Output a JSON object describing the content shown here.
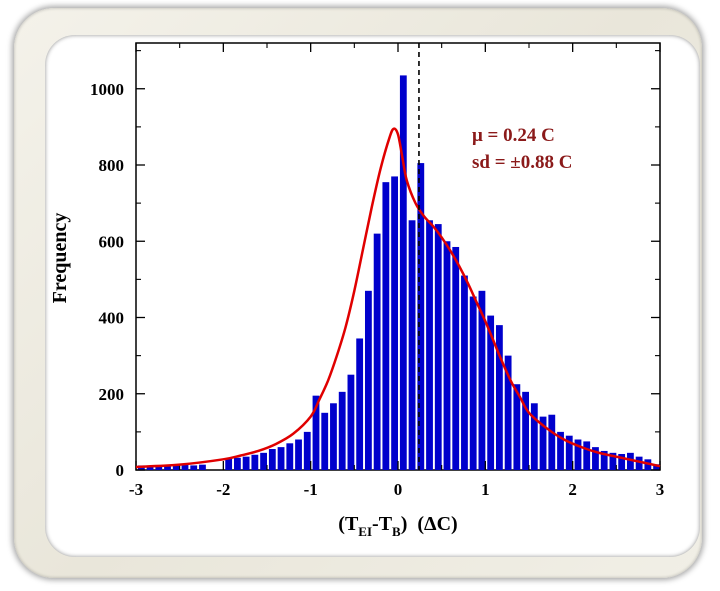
{
  "chart_data": {
    "type": "bar",
    "title": "",
    "xlabel_parts": {
      "open": "(T",
      "sub1": "EI",
      "mid": "-T",
      "sub2": "B",
      "close": ")",
      "unit": "(ΔC)"
    },
    "ylabel": "Frequency",
    "xlim": [
      -3,
      3
    ],
    "ylim": [
      0,
      1000
    ],
    "x_ticks": [
      -3,
      -2,
      -1,
      0,
      1,
      2,
      3
    ],
    "x_tick_labels": [
      "-3",
      "-2",
      "-1",
      "0",
      "1",
      "2",
      "3"
    ],
    "y_ticks": [
      0,
      200,
      400,
      600,
      800,
      1000
    ],
    "y_tick_labels": [
      "0",
      "200",
      "400",
      "600",
      "800",
      "1000"
    ],
    "bin_width": 0.1,
    "bin_starts": [
      -3.0,
      -2.9,
      -2.8,
      -2.7,
      -2.6,
      -2.5,
      -2.4,
      -2.3,
      -2.2,
      -2.1,
      -2.0,
      -1.9,
      -1.8,
      -1.7,
      -1.6,
      -1.5,
      -1.4,
      -1.3,
      -1.2,
      -1.1,
      -1.0,
      -0.9,
      -0.8,
      -0.7,
      -0.6,
      -0.5,
      -0.4,
      -0.3,
      -0.2,
      -0.1,
      0.0,
      0.1,
      0.2,
      0.3,
      0.4,
      0.5,
      0.6,
      0.7,
      0.8,
      0.9,
      1.0,
      1.1,
      1.2,
      1.3,
      1.4,
      1.5,
      1.6,
      1.7,
      1.8,
      1.9,
      2.0,
      2.1,
      2.2,
      2.3,
      2.4,
      2.5,
      2.6,
      2.7,
      2.8,
      2.9
    ],
    "values": [
      12,
      10,
      10,
      10,
      12,
      14,
      12,
      14,
      0,
      0,
      30,
      32,
      35,
      40,
      45,
      55,
      60,
      70,
      80,
      100,
      195,
      150,
      175,
      205,
      250,
      345,
      470,
      620,
      755,
      770,
      1035,
      655,
      805,
      655,
      645,
      600,
      585,
      510,
      455,
      470,
      405,
      380,
      300,
      225,
      205,
      175,
      140,
      145,
      100,
      90,
      80,
      75,
      60,
      50,
      45,
      42,
      45,
      35,
      28,
      15
    ],
    "bar_color": "#0000cc",
    "fit_curve": {
      "color": "#e00000",
      "x": [
        -3,
        -2.5,
        -2,
        -1.8,
        -1.6,
        -1.4,
        -1.2,
        -1.0,
        -0.9,
        -0.8,
        -0.7,
        -0.6,
        -0.5,
        -0.4,
        -0.3,
        -0.2,
        -0.1,
        -0.05,
        0,
        0.05,
        0.1,
        0.2,
        0.3,
        0.4,
        0.5,
        0.6,
        0.7,
        0.8,
        0.9,
        1.0,
        1.1,
        1.2,
        1.3,
        1.4,
        1.5,
        1.7,
        1.9,
        2.1,
        2.3,
        2.5,
        2.7,
        3.0
      ],
      "y": [
        8,
        14,
        28,
        38,
        50,
        68,
        95,
        140,
        185,
        235,
        300,
        375,
        470,
        580,
        690,
        790,
        870,
        895,
        880,
        820,
        760,
        700,
        665,
        640,
        610,
        575,
        535,
        490,
        440,
        390,
        335,
        280,
        230,
        190,
        150,
        110,
        80,
        60,
        45,
        35,
        25,
        10
      ]
    },
    "mean_line": {
      "x": 0.24,
      "style": "dashed",
      "color": "#000000"
    },
    "annotations": [
      "μ   =   0.24 C",
      "sd = ±0.88 C"
    ],
    "annotation_color": "#8b1a1a"
  }
}
